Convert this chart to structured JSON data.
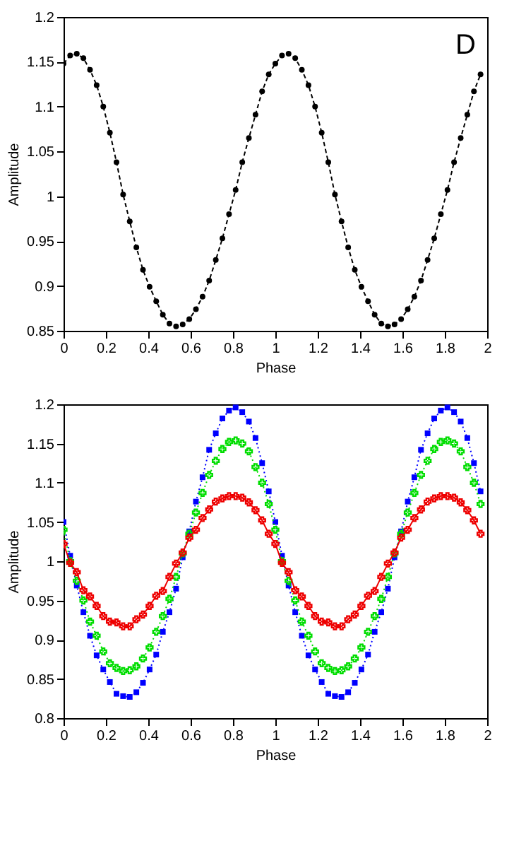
{
  "chart_data": [
    {
      "type": "line",
      "xlabel": "Phase",
      "ylabel": "Amplitude",
      "annotations": [
        "D"
      ],
      "xlim": [
        0,
        2
      ],
      "ylim": [
        0.85,
        1.2
      ],
      "xticks": [
        0,
        0.2,
        0.4,
        0.6,
        0.8,
        1,
        1.2,
        1.4,
        1.6,
        1.8,
        2
      ],
      "yticks": [
        0.85,
        0.9,
        0.95,
        1,
        1.05,
        1.1,
        1.15,
        1.2
      ],
      "grid": false,
      "legend": false,
      "x": [
        0,
        0.03125,
        0.0625,
        0.09375,
        0.125,
        0.15625,
        0.1875,
        0.21875,
        0.25,
        0.28125,
        0.3125,
        0.34375,
        0.375,
        0.40625,
        0.4375,
        0.46875,
        0.5,
        0.53125,
        0.5625,
        0.59375,
        0.625,
        0.65625,
        0.6875,
        0.71875,
        0.75,
        0.78125,
        0.8125,
        0.84375,
        0.875,
        0.90625,
        0.9375,
        0.96875,
        1,
        1.03125,
        1.0625,
        1.09375,
        1.125,
        1.15625,
        1.1875,
        1.21875,
        1.25,
        1.28125,
        1.3125,
        1.34375,
        1.375,
        1.40625,
        1.4375,
        1.46875,
        1.5,
        1.53125,
        1.5625,
        1.59375,
        1.625,
        1.65625,
        1.6875,
        1.71875,
        1.75,
        1.78125,
        1.8125,
        1.84375,
        1.875,
        1.90625,
        1.9375,
        1.96875
      ],
      "series": [
        {
          "color": "#000000",
          "marker": "circle",
          "line_style": "dashed",
          "values": [
            1.148,
            1.157,
            1.159,
            1.154,
            1.141,
            1.124,
            1.1,
            1.071,
            1.038,
            1.002,
            0.972,
            0.943,
            0.918,
            0.899,
            0.883,
            0.868,
            0.858,
            0.855,
            0.857,
            0.863,
            0.874,
            0.888,
            0.906,
            0.929,
            0.953,
            0.98,
            1.007,
            1.038,
            1.065,
            1.091,
            1.117,
            1.136,
            1.148,
            1.157,
            1.159,
            1.154,
            1.141,
            1.124,
            1.1,
            1.071,
            1.038,
            1.002,
            0.972,
            0.943,
            0.918,
            0.899,
            0.883,
            0.868,
            0.858,
            0.855,
            0.857,
            0.863,
            0.874,
            0.888,
            0.906,
            0.929,
            0.953,
            0.98,
            1.007,
            1.038,
            1.065,
            1.091,
            1.117,
            1.136
          ]
        }
      ]
    },
    {
      "type": "line",
      "xlabel": "Phase",
      "ylabel": "Amplitude",
      "xlim": [
        0,
        2
      ],
      "ylim": [
        0.8,
        1.2
      ],
      "xticks": [
        0,
        0.2,
        0.4,
        0.6,
        0.8,
        1,
        1.2,
        1.4,
        1.6,
        1.8,
        2
      ],
      "yticks": [
        0.8,
        0.85,
        0.9,
        0.95,
        1,
        1.05,
        1.1,
        1.15,
        1.2
      ],
      "grid": false,
      "legend": false,
      "x": [
        0,
        0.03125,
        0.0625,
        0.09375,
        0.125,
        0.15625,
        0.1875,
        0.21875,
        0.25,
        0.28125,
        0.3125,
        0.34375,
        0.375,
        0.40625,
        0.4375,
        0.46875,
        0.5,
        0.53125,
        0.5625,
        0.59375,
        0.625,
        0.65625,
        0.6875,
        0.71875,
        0.75,
        0.78125,
        0.8125,
        0.84375,
        0.875,
        0.90625,
        0.9375,
        0.96875,
        1,
        1.03125,
        1.0625,
        1.09375,
        1.125,
        1.15625,
        1.1875,
        1.21875,
        1.25,
        1.28125,
        1.3125,
        1.34375,
        1.375,
        1.40625,
        1.4375,
        1.46875,
        1.5,
        1.53125,
        1.5625,
        1.59375,
        1.625,
        1.65625,
        1.6875,
        1.71875,
        1.75,
        1.78125,
        1.8125,
        1.84375,
        1.875,
        1.90625,
        1.9375,
        1.96875
      ],
      "series": [
        {
          "color": "#0000ff",
          "marker": "square",
          "line_style": "dotted",
          "values": [
            1.05,
            1.007,
            0.969,
            0.935,
            0.905,
            0.88,
            0.862,
            0.846,
            0.831,
            0.828,
            0.827,
            0.833,
            0.845,
            0.862,
            0.881,
            0.91,
            0.935,
            0.965,
            1.005,
            1.038,
            1.076,
            1.107,
            1.142,
            1.163,
            1.182,
            1.192,
            1.196,
            1.19,
            1.178,
            1.157,
            1.125,
            1.089,
            1.05,
            1.007,
            0.969,
            0.935,
            0.905,
            0.88,
            0.862,
            0.846,
            0.831,
            0.828,
            0.827,
            0.833,
            0.845,
            0.862,
            0.881,
            0.91,
            0.935,
            0.965,
            1.005,
            1.038,
            1.076,
            1.107,
            1.142,
            1.163,
            1.182,
            1.192,
            1.196,
            1.19,
            1.178,
            1.157,
            1.125,
            1.089
          ]
        },
        {
          "color": "#00dd00",
          "marker": "cross",
          "line_style": "dotted",
          "values": [
            1.04,
            1.0,
            0.975,
            0.95,
            0.923,
            0.905,
            0.885,
            0.87,
            0.864,
            0.86,
            0.861,
            0.866,
            0.876,
            0.89,
            0.91,
            0.93,
            0.952,
            0.98,
            1.01,
            1.035,
            1.062,
            1.087,
            1.11,
            1.128,
            1.143,
            1.152,
            1.154,
            1.15,
            1.14,
            1.12,
            1.1,
            1.073,
            1.04,
            1.0,
            0.975,
            0.95,
            0.923,
            0.905,
            0.885,
            0.87,
            0.864,
            0.86,
            0.861,
            0.866,
            0.876,
            0.89,
            0.91,
            0.93,
            0.952,
            0.98,
            1.01,
            1.035,
            1.062,
            1.087,
            1.11,
            1.128,
            1.143,
            1.152,
            1.154,
            1.15,
            1.14,
            1.12,
            1.1,
            1.073
          ]
        },
        {
          "color": "#ee0000",
          "marker": "cross",
          "line_style": "solid",
          "values": [
            1.022,
            0.998,
            0.986,
            0.963,
            0.955,
            0.943,
            0.93,
            0.923,
            0.922,
            0.917,
            0.917,
            0.926,
            0.932,
            0.943,
            0.956,
            0.962,
            0.98,
            0.997,
            1.011,
            1.03,
            1.04,
            1.055,
            1.066,
            1.076,
            1.08,
            1.083,
            1.083,
            1.081,
            1.075,
            1.065,
            1.052,
            1.035,
            1.022,
            0.998,
            0.986,
            0.963,
            0.955,
            0.943,
            0.93,
            0.923,
            0.922,
            0.917,
            0.917,
            0.926,
            0.932,
            0.943,
            0.956,
            0.962,
            0.98,
            0.997,
            1.011,
            1.03,
            1.04,
            1.055,
            1.066,
            1.076,
            1.08,
            1.083,
            1.083,
            1.081,
            1.075,
            1.065,
            1.052,
            1.035
          ]
        }
      ]
    }
  ]
}
